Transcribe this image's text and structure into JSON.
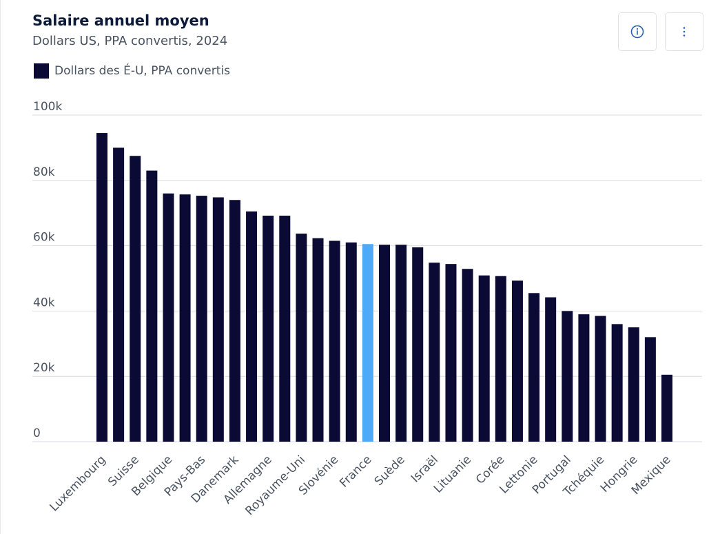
{
  "header": {
    "title": "Salaire annuel moyen",
    "subtitle": "Dollars US, PPA convertis, 2024",
    "info_icon": "info-icon",
    "menu_icon": "more-vertical-icon"
  },
  "legend": {
    "label": "Dollars des É-U, PPA convertis"
  },
  "colors": {
    "bar": "#0a0a35",
    "highlight": "#4daaf8",
    "grid": "#d8dbe0",
    "text": "#4a5361",
    "icon": "#2a5db0"
  },
  "chart_data": {
    "type": "bar",
    "title": "Salaire annuel moyen",
    "subtitle": "Dollars US, PPA convertis, 2024",
    "xlabel": "",
    "ylabel": "",
    "ylim": [
      0,
      100000
    ],
    "yticks": [
      0,
      20000,
      40000,
      60000,
      80000,
      100000
    ],
    "ytick_labels": [
      "0",
      "20k",
      "40k",
      "60k",
      "80k",
      "100k"
    ],
    "grid": true,
    "legend_position": "top-left",
    "highlight_category": "France",
    "categories": [
      "Luxembourg",
      "",
      "Suisse",
      "",
      "Belgique",
      "",
      "Pays-Bas",
      "",
      "Danemark",
      "",
      "Allemagne",
      "",
      "Royaume-Uni",
      "",
      "Slovénie",
      "",
      "France",
      "",
      "Suède",
      "",
      "Israël",
      "",
      "Lituanie",
      "",
      "Corée",
      "",
      "Lettonie",
      "",
      "Portugal",
      "",
      "Tchéquie",
      "",
      "Hongrie",
      "",
      "Mexique"
    ],
    "series": [
      {
        "name": "Dollars des É-U, PPA convertis",
        "values": [
          94500,
          90000,
          87500,
          83000,
          76000,
          75700,
          75300,
          74800,
          74000,
          70500,
          69200,
          69200,
          63700,
          62300,
          61500,
          61000,
          60500,
          60300,
          60300,
          59500,
          54800,
          54400,
          52900,
          50900,
          50700,
          49300,
          45500,
          44200,
          40000,
          39000,
          38500,
          36000,
          35000,
          32000,
          20500
        ]
      }
    ]
  }
}
